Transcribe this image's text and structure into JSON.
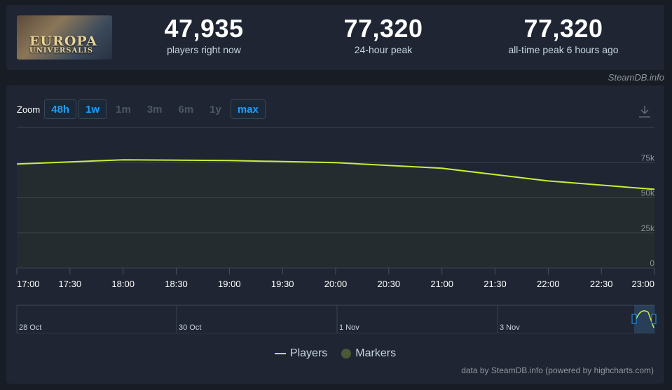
{
  "header": {
    "logo_lines": [
      "EUROPA",
      "UNIVERSALIS"
    ],
    "stats": [
      {
        "value": "47,935",
        "label": "players right now"
      },
      {
        "value": "77,320",
        "label": "24-hour peak"
      },
      {
        "value": "77,320",
        "label": "all-time peak 6 hours ago"
      }
    ],
    "credit": "SteamDB.info"
  },
  "zoom": {
    "label": "Zoom",
    "buttons": [
      {
        "label": "48h",
        "enabled": true
      },
      {
        "label": "1w",
        "enabled": true
      },
      {
        "label": "1m",
        "enabled": false
      },
      {
        "label": "3m",
        "enabled": false
      },
      {
        "label": "6m",
        "enabled": false
      },
      {
        "label": "1y",
        "enabled": false
      },
      {
        "label": "max",
        "enabled": true
      }
    ]
  },
  "legend": {
    "players": "Players",
    "markers": "Markers"
  },
  "footer": "data by SteamDB.info (powered by highcharts.com)",
  "colors": {
    "series": "#c8f036",
    "accent": "#1a9fff",
    "grid": "#3a4250"
  },
  "chart_data": {
    "type": "line",
    "x": [
      "17:00",
      "18:00",
      "19:00",
      "20:00",
      "21:00",
      "22:00",
      "23:00"
    ],
    "series": [
      {
        "name": "Players",
        "values": [
          74000,
          77000,
          76500,
          75000,
          71000,
          62000,
          56000
        ]
      }
    ],
    "x_ticks": [
      "17:00",
      "17:30",
      "18:00",
      "18:30",
      "19:00",
      "19:30",
      "20:00",
      "20:30",
      "21:00",
      "21:30",
      "22:00",
      "22:30",
      "23:00"
    ],
    "y_ticks": [
      "0",
      "25k",
      "50k",
      "75k"
    ],
    "ylim": [
      0,
      100000
    ],
    "navigator_labels": [
      "28 Oct",
      "30 Oct",
      "1 Nov",
      "3 Nov"
    ],
    "grid": true,
    "legend_placement": "bottom-center"
  }
}
